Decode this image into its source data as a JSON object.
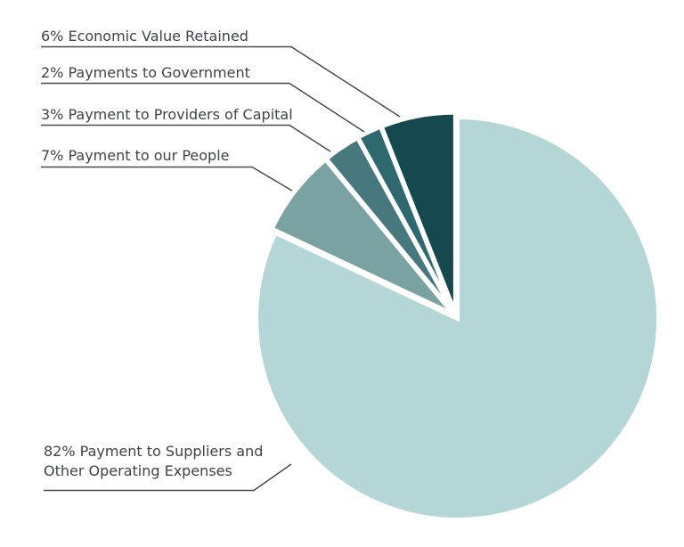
{
  "page": {
    "background": "#ffffff"
  },
  "chart_data": {
    "type": "pie",
    "title": "",
    "unit": "%",
    "direction": "clockwise",
    "start_angle_deg": 0,
    "legend_position": "callout-labels-left",
    "grid": false,
    "slice_gap_color": "#ffffff",
    "annotation_line_color": "#4a4a4a",
    "label_text_color": "#3e4347",
    "slices": [
      {
        "name": "Payment to Suppliers and Other Operating Expenses",
        "value": 82,
        "color": "#b5d6d6",
        "label": "82% Payment to Suppliers and Other Operating Expenses",
        "label_lines": [
          "82% Payment to Suppliers and",
          "Other Operating Expenses"
        ]
      },
      {
        "name": "Payment to our People",
        "value": 7,
        "color": "#7aa2a2",
        "label": "7% Payment to our People"
      },
      {
        "name": "Payment to Providers of Capital",
        "value": 3,
        "color": "#46787d",
        "label": "3% Payment to Providers of Capital"
      },
      {
        "name": "Payments to Government",
        "value": 2,
        "color": "#2f6970",
        "label": "2% Payments to Government"
      },
      {
        "name": "Economic Value Retained",
        "value": 6,
        "color": "#15494f",
        "label": "6% Economic Value Retained"
      }
    ]
  }
}
